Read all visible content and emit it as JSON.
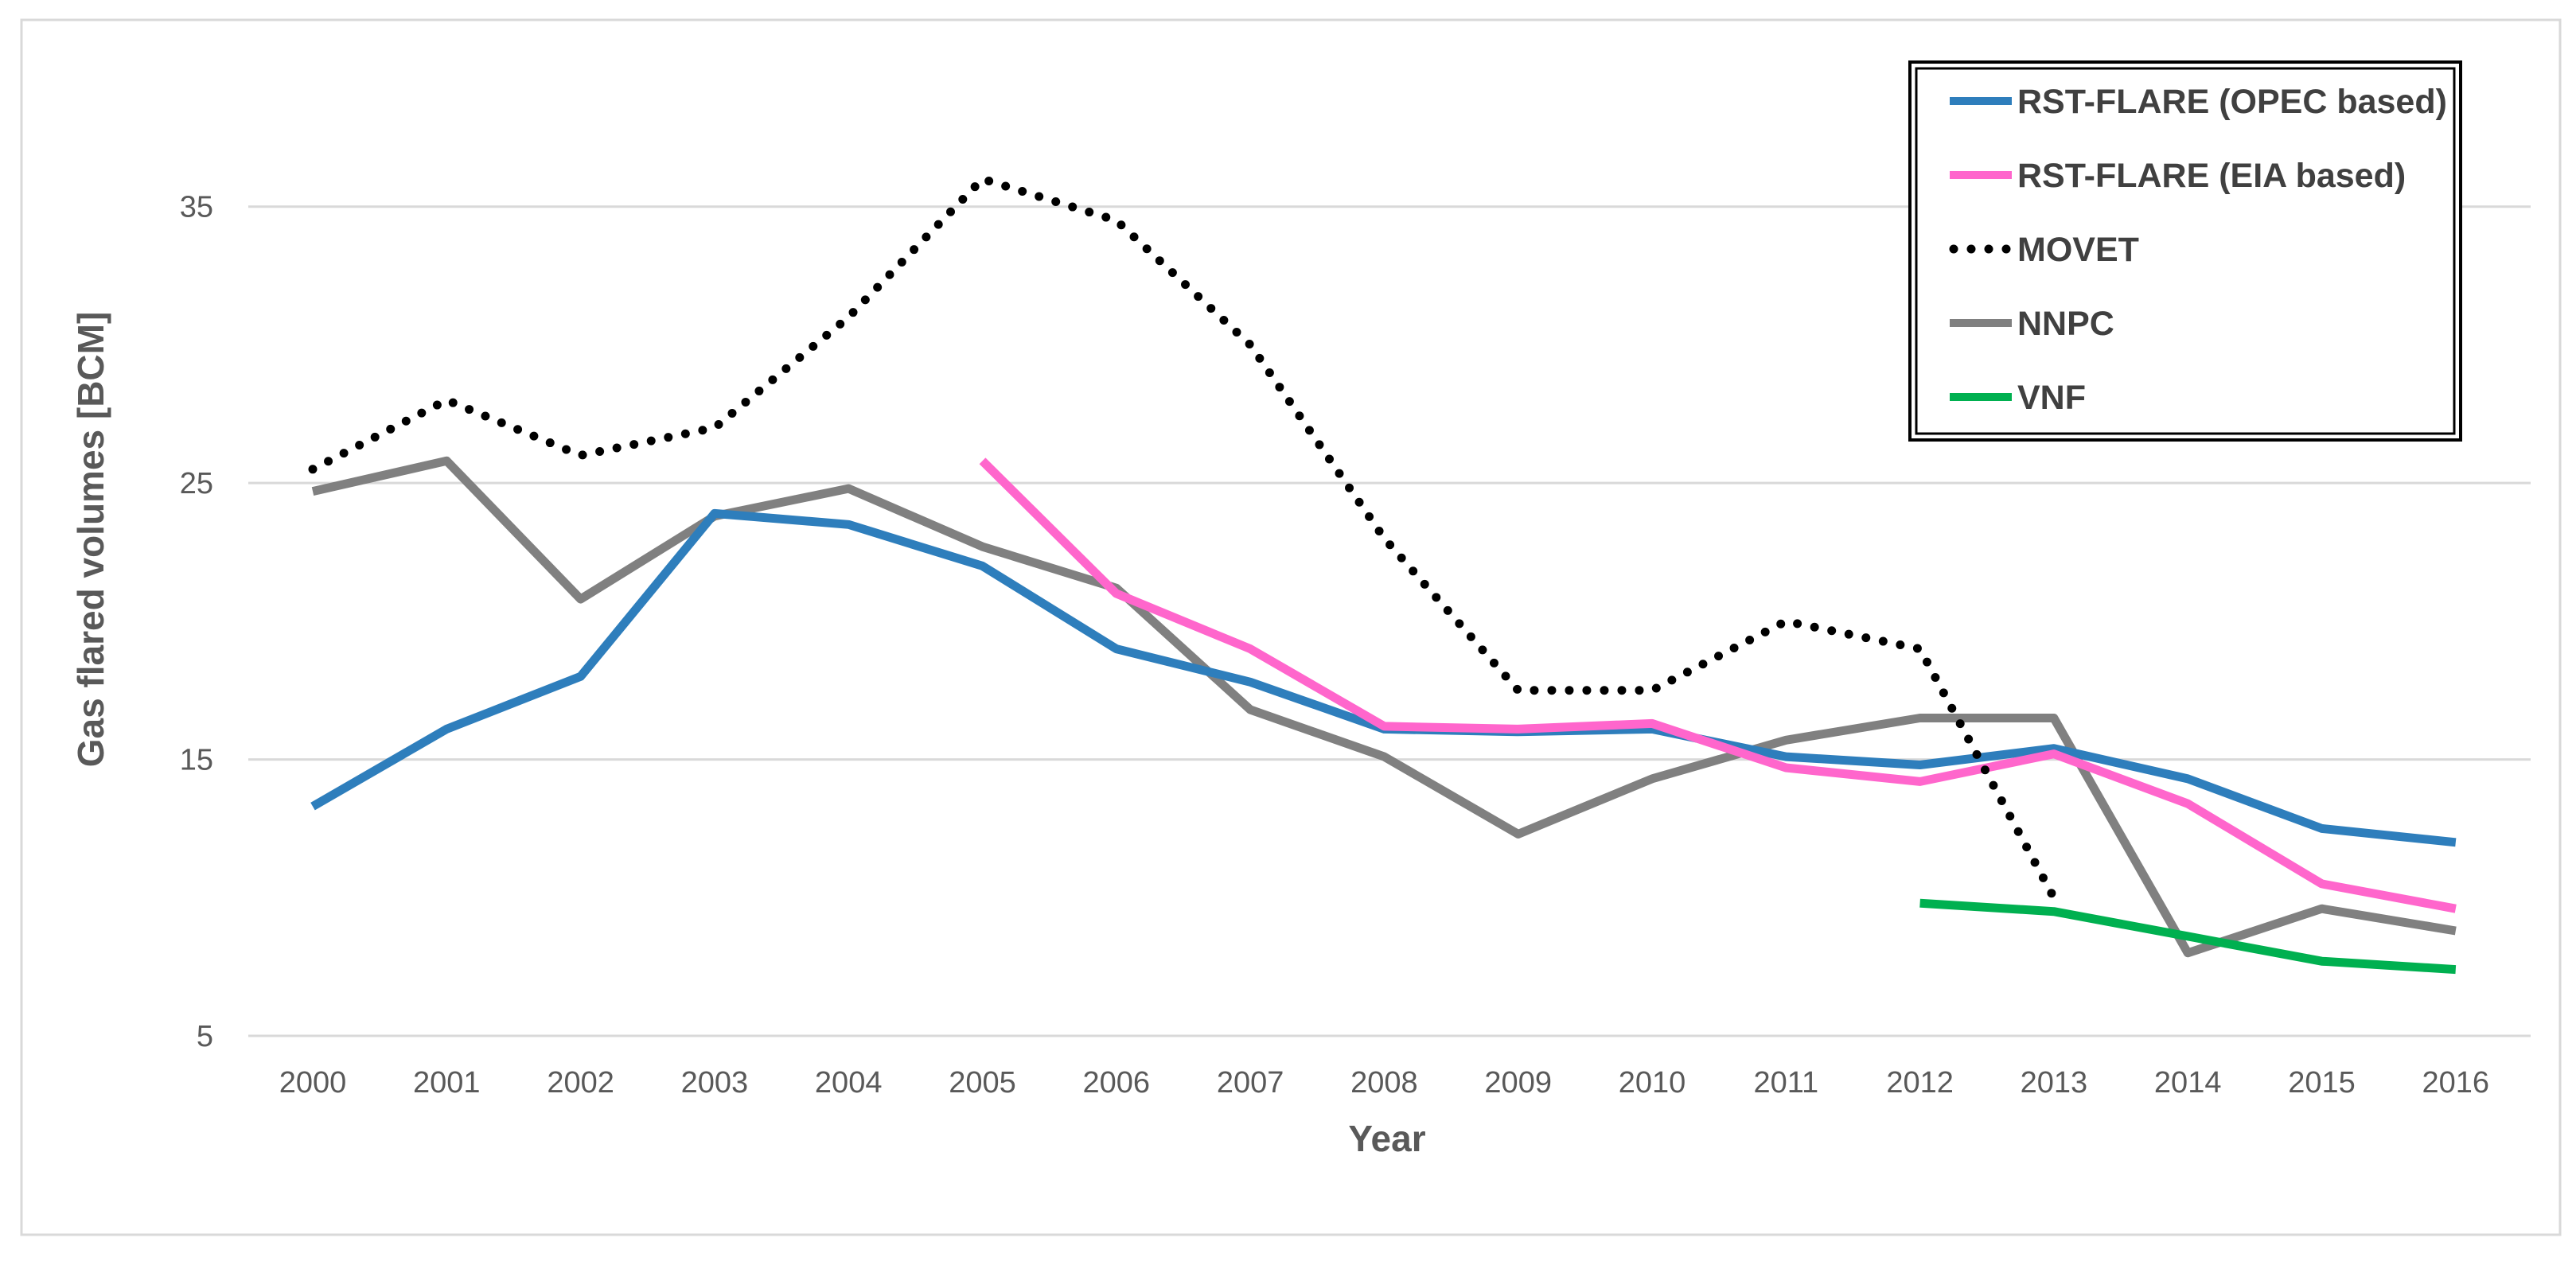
{
  "chart_data": {
    "type": "line",
    "title": "",
    "xlabel": "Year",
    "ylabel": "Gas flared volumes [BCM]",
    "ylim": [
      5,
      40
    ],
    "yticks": [
      5,
      15,
      25,
      35
    ],
    "grid": true,
    "legend_position": "top-right",
    "categories": [
      "2000",
      "2001",
      "2002",
      "2003",
      "2004",
      "2005",
      "2006",
      "2007",
      "2008",
      "2009",
      "2010",
      "2011",
      "2012",
      "2013",
      "2014",
      "2015",
      "2016"
    ],
    "series": [
      {
        "name": "RST-FLARE (OPEC based)",
        "color": "#2e7ebc",
        "style": "solid",
        "values": [
          13.3,
          16.1,
          18.0,
          23.9,
          23.5,
          22.0,
          19.0,
          17.8,
          16.1,
          16.0,
          16.1,
          15.1,
          14.8,
          15.4,
          14.3,
          12.5,
          12.0
        ]
      },
      {
        "name": "RST-FLARE (EIA based)",
        "color": "#ff66cc",
        "style": "solid",
        "values": [
          null,
          null,
          null,
          null,
          null,
          25.8,
          21.0,
          19.0,
          16.2,
          16.1,
          16.3,
          14.7,
          14.2,
          15.2,
          13.4,
          10.5,
          9.6
        ]
      },
      {
        "name": "MOVET",
        "color": "#000000",
        "style": "dotted",
        "values": [
          25.5,
          28.0,
          26.0,
          27.0,
          31.0,
          36.0,
          34.5,
          30.0,
          23.0,
          17.5,
          17.5,
          20.0,
          19.0,
          10.0,
          null,
          null,
          null
        ]
      },
      {
        "name": "NNPC",
        "color": "#808080",
        "style": "solid",
        "values": [
          24.7,
          25.8,
          20.8,
          23.8,
          24.8,
          22.7,
          21.2,
          16.8,
          15.1,
          12.3,
          14.3,
          15.7,
          16.5,
          16.5,
          8.0,
          9.6,
          8.8
        ]
      },
      {
        "name": "VNF",
        "color": "#00b050",
        "style": "solid",
        "values": [
          null,
          null,
          null,
          null,
          null,
          null,
          null,
          null,
          null,
          null,
          null,
          null,
          9.8,
          9.5,
          8.6,
          7.7,
          7.4
        ]
      }
    ]
  }
}
